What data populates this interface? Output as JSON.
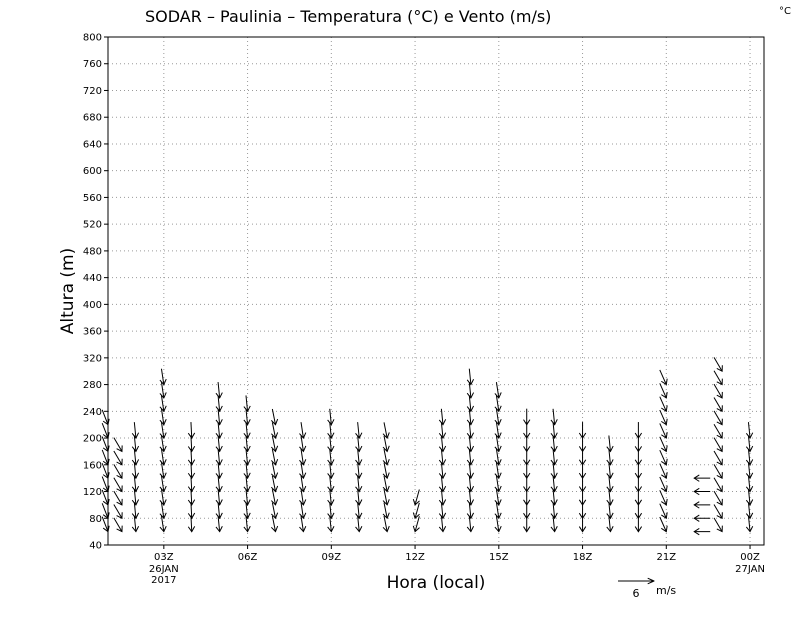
{
  "chart_data": {
    "type": "wind-barb-profile",
    "title": "SODAR – Paulinia – Temperatura (°C) e Vento (m/s)",
    "corner_unit": "°C",
    "xlabel": "Hora (local)",
    "ylabel": "Altura (m)",
    "ylim": [
      40,
      800
    ],
    "y_ticks": [
      40,
      80,
      120,
      160,
      200,
      240,
      280,
      320,
      360,
      400,
      440,
      480,
      520,
      560,
      600,
      640,
      680,
      720,
      760,
      800
    ],
    "xlim_hours": [
      0,
      23.5
    ],
    "x_ticks": [
      {
        "hour": 2,
        "label": "03Z",
        "sub": [
          "26JAN",
          "2017"
        ]
      },
      {
        "hour": 5,
        "label": "06Z",
        "sub": []
      },
      {
        "hour": 8,
        "label": "09Z",
        "sub": []
      },
      {
        "hour": 11,
        "label": "12Z",
        "sub": []
      },
      {
        "hour": 14,
        "label": "15Z",
        "sub": []
      },
      {
        "hour": 17,
        "label": "18Z",
        "sub": []
      },
      {
        "hour": 20,
        "label": "21Z",
        "sub": []
      },
      {
        "hour": 23,
        "label": "00Z",
        "sub": [
          "27JAN"
        ]
      }
    ],
    "grid": true,
    "legend": {
      "label": "6",
      "unit": "m/s",
      "placement": "bottom-right"
    },
    "profiles": [
      {
        "hour": 0.0,
        "top": 220,
        "dx": 0.35,
        "dy": -0.9
      },
      {
        "hour": 0.5,
        "top": 180,
        "dx": 0.5,
        "dy": -0.85
      },
      {
        "hour": 1.0,
        "top": 200,
        "dx": 0.1,
        "dy": -1.0
      },
      {
        "hour": 2.0,
        "top": 280,
        "dx": 0.15,
        "dy": -1.0
      },
      {
        "hour": 3.0,
        "top": 200,
        "dx": 0.05,
        "dy": -1.0
      },
      {
        "hour": 4.0,
        "top": 260,
        "dx": 0.1,
        "dy": -1.0
      },
      {
        "hour": 5.0,
        "top": 240,
        "dx": 0.1,
        "dy": -1.0
      },
      {
        "hour": 6.0,
        "top": 220,
        "dx": 0.2,
        "dy": -1.0
      },
      {
        "hour": 7.0,
        "top": 200,
        "dx": 0.15,
        "dy": -1.0
      },
      {
        "hour": 8.0,
        "top": 220,
        "dx": 0.1,
        "dy": -1.0
      },
      {
        "hour": 9.0,
        "top": 200,
        "dx": 0.1,
        "dy": -1.0
      },
      {
        "hour": 10.0,
        "top": 200,
        "dx": 0.2,
        "dy": -1.0
      },
      {
        "hour": 11.0,
        "top": 100,
        "dx": -0.25,
        "dy": -0.9
      },
      {
        "hour": 12.0,
        "top": 220,
        "dx": 0.1,
        "dy": -1.0
      },
      {
        "hour": 13.0,
        "top": 280,
        "dx": 0.1,
        "dy": -1.0
      },
      {
        "hour": 14.0,
        "top": 260,
        "dx": 0.15,
        "dy": -1.0
      },
      {
        "hour": 15.0,
        "top": 220,
        "dx": 0.0,
        "dy": -1.0
      },
      {
        "hour": 16.0,
        "top": 220,
        "dx": 0.1,
        "dy": -1.0
      },
      {
        "hour": 17.0,
        "top": 200,
        "dx": 0.0,
        "dy": -1.0
      },
      {
        "hour": 18.0,
        "top": 180,
        "dx": 0.1,
        "dy": -1.0
      },
      {
        "hour": 19.0,
        "top": 200,
        "dx": 0.0,
        "dy": -1.0
      },
      {
        "hour": 20.0,
        "top": 280,
        "dx": 0.4,
        "dy": -0.9
      },
      {
        "hour": 21.0,
        "top": 140,
        "dx": -1.0,
        "dy": 0.0
      },
      {
        "hour": 22.0,
        "top": 300,
        "dx": 0.5,
        "dy": -0.85
      },
      {
        "hour": 23.0,
        "top": 200,
        "dx": 0.1,
        "dy": -1.0
      }
    ]
  }
}
